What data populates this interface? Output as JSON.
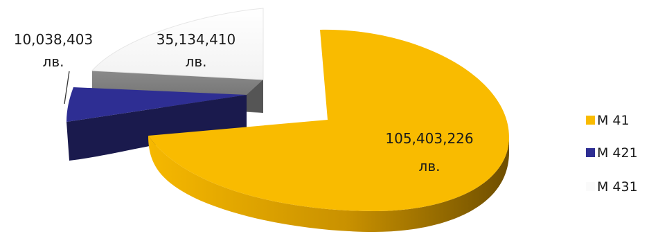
{
  "chart_data": {
    "type": "pie",
    "style": "3d-exploded",
    "legend_position": "right",
    "slices": [
      {
        "name": "М 41",
        "value": 105403226,
        "label_line1": "105,403,226",
        "label_line2": "лв.",
        "color": "#F9BB00",
        "side_color": "#B98400"
      },
      {
        "name": "М 421",
        "value": 10038403,
        "label_line1": "10,038,403",
        "label_line2": "лв.",
        "color": "#2E2E93",
        "side_color": "#1A1A4D"
      },
      {
        "name": "М 431",
        "value": 35134410,
        "label_line1": "35,134,410",
        "label_line2": "лв.",
        "color": "#FAFAFA",
        "side_color": "#7F7F7F"
      }
    ]
  }
}
